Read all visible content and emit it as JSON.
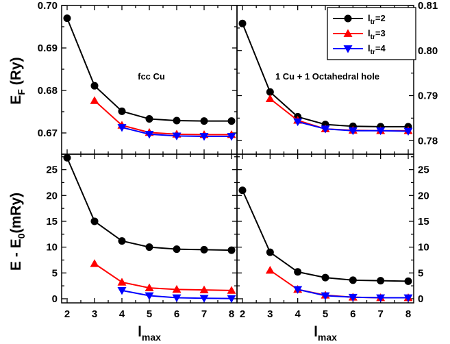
{
  "chart_data": [
    {
      "id": "top-left",
      "type": "line",
      "x": [
        2,
        3,
        4,
        5,
        6,
        7,
        8
      ],
      "xlim": [
        2,
        8
      ],
      "ylim": [
        0.665,
        0.7
      ],
      "yticks": [
        0.67,
        0.68,
        0.69,
        0.7
      ],
      "ytick_labels": [
        "0.67",
        "0.68",
        "0.69",
        "0.70"
      ],
      "annotation": "fcc Cu",
      "series": [
        {
          "key": "ltr2",
          "color": "#000000",
          "marker": "circle",
          "values": [
            0.697,
            0.6811,
            0.6751,
            0.6733,
            0.6729,
            0.6728,
            0.6728
          ]
        },
        {
          "key": "ltr3",
          "color": "#ff0000",
          "marker": "triangle-up",
          "values": [
            null,
            0.6776,
            0.6718,
            0.6701,
            0.6697,
            0.6696,
            0.6696
          ]
        },
        {
          "key": "ltr4",
          "color": "#0000ff",
          "marker": "triangle-down",
          "values": [
            null,
            null,
            0.6713,
            0.6697,
            0.6693,
            0.6692,
            0.6692
          ]
        }
      ]
    },
    {
      "id": "top-right",
      "type": "line",
      "x": [
        2,
        3,
        4,
        5,
        6,
        7,
        8
      ],
      "xlim": [
        2,
        8
      ],
      "ylim": [
        0.777,
        0.81
      ],
      "yticks": [
        0.78,
        0.79,
        0.8,
        0.81
      ],
      "ytick_labels": [
        "0.78",
        "0.79",
        "0.80",
        "0.81"
      ],
      "annotation": "1 Cu + 1 Octahedral hole",
      "series": [
        {
          "key": "ltr2",
          "color": "#000000",
          "marker": "circle",
          "values": [
            0.806,
            0.7908,
            0.7853,
            0.7836,
            0.7832,
            0.7831,
            0.7831
          ]
        },
        {
          "key": "ltr3",
          "color": "#ff0000",
          "marker": "triangle-up",
          "values": [
            null,
            0.7893,
            0.7845,
            0.7826,
            0.7823,
            0.7822,
            0.7822
          ]
        },
        {
          "key": "ltr4",
          "color": "#0000ff",
          "marker": "triangle-down",
          "values": [
            null,
            null,
            0.7842,
            0.7826,
            0.7822,
            0.7822,
            0.7821
          ]
        }
      ]
    },
    {
      "id": "bottom-left",
      "type": "line",
      "x": [
        2,
        3,
        4,
        5,
        6,
        7,
        8
      ],
      "xlim": [
        2,
        8
      ],
      "ylim": [
        -0.8,
        28
      ],
      "yticks": [
        0,
        5,
        10,
        15,
        20,
        25
      ],
      "ytick_labels": [
        "0",
        "5",
        "10",
        "15",
        "20",
        "25"
      ],
      "series": [
        {
          "key": "ltr2",
          "color": "#000000",
          "marker": "circle",
          "values": [
            27.3,
            15.0,
            11.2,
            10.0,
            9.6,
            9.5,
            9.4
          ]
        },
        {
          "key": "ltr3",
          "color": "#ff0000",
          "marker": "triangle-up",
          "values": [
            null,
            6.8,
            3.2,
            2.1,
            1.8,
            1.7,
            1.6
          ]
        },
        {
          "key": "ltr4",
          "color": "#0000ff",
          "marker": "triangle-down",
          "values": [
            null,
            null,
            1.6,
            0.6,
            0.2,
            0.1,
            0.05
          ]
        }
      ]
    },
    {
      "id": "bottom-right",
      "type": "line",
      "x": [
        2,
        3,
        4,
        5,
        6,
        7,
        8
      ],
      "xlim": [
        2,
        8
      ],
      "ylim": [
        -0.8,
        28
      ],
      "yticks": [
        0,
        5,
        10,
        15,
        20,
        25
      ],
      "ytick_labels": [
        "0",
        "5",
        "10",
        "15",
        "20",
        "25"
      ],
      "series": [
        {
          "key": "ltr2",
          "color": "#000000",
          "marker": "circle",
          "values": [
            21.0,
            9.0,
            5.2,
            4.1,
            3.6,
            3.5,
            3.4
          ]
        },
        {
          "key": "ltr3",
          "color": "#ff0000",
          "marker": "triangle-up",
          "values": [
            null,
            5.5,
            1.8,
            0.7,
            0.3,
            0.2,
            0.2
          ]
        },
        {
          "key": "ltr4",
          "color": "#0000ff",
          "marker": "triangle-down",
          "values": [
            null,
            null,
            1.8,
            0.6,
            0.3,
            0.2,
            0.2
          ]
        }
      ]
    }
  ],
  "labels": {
    "top_ylabel_main": "E",
    "top_ylabel_sub": "F",
    "top_ylabel_unit": " (Ry)",
    "bottom_ylabel_main": "E - E",
    "bottom_ylabel_sub": "0",
    "bottom_ylabel_unit": "(mRy)",
    "xlabel_main": "l",
    "xlabel_sub": "max",
    "xtick_labels": [
      "2",
      "3",
      "4",
      "5",
      "6",
      "7",
      "8"
    ]
  },
  "legend": {
    "placement": "top-right",
    "entries": [
      {
        "main": "l",
        "sub": "tr",
        "rest": "=2",
        "color": "#000000",
        "marker": "circle"
      },
      {
        "main": "l",
        "sub": "tr",
        "rest": "=3",
        "color": "#ff0000",
        "marker": "triangle-up"
      },
      {
        "main": "l",
        "sub": "tr",
        "rest": "=4",
        "color": "#0000ff",
        "marker": "triangle-down"
      }
    ]
  }
}
